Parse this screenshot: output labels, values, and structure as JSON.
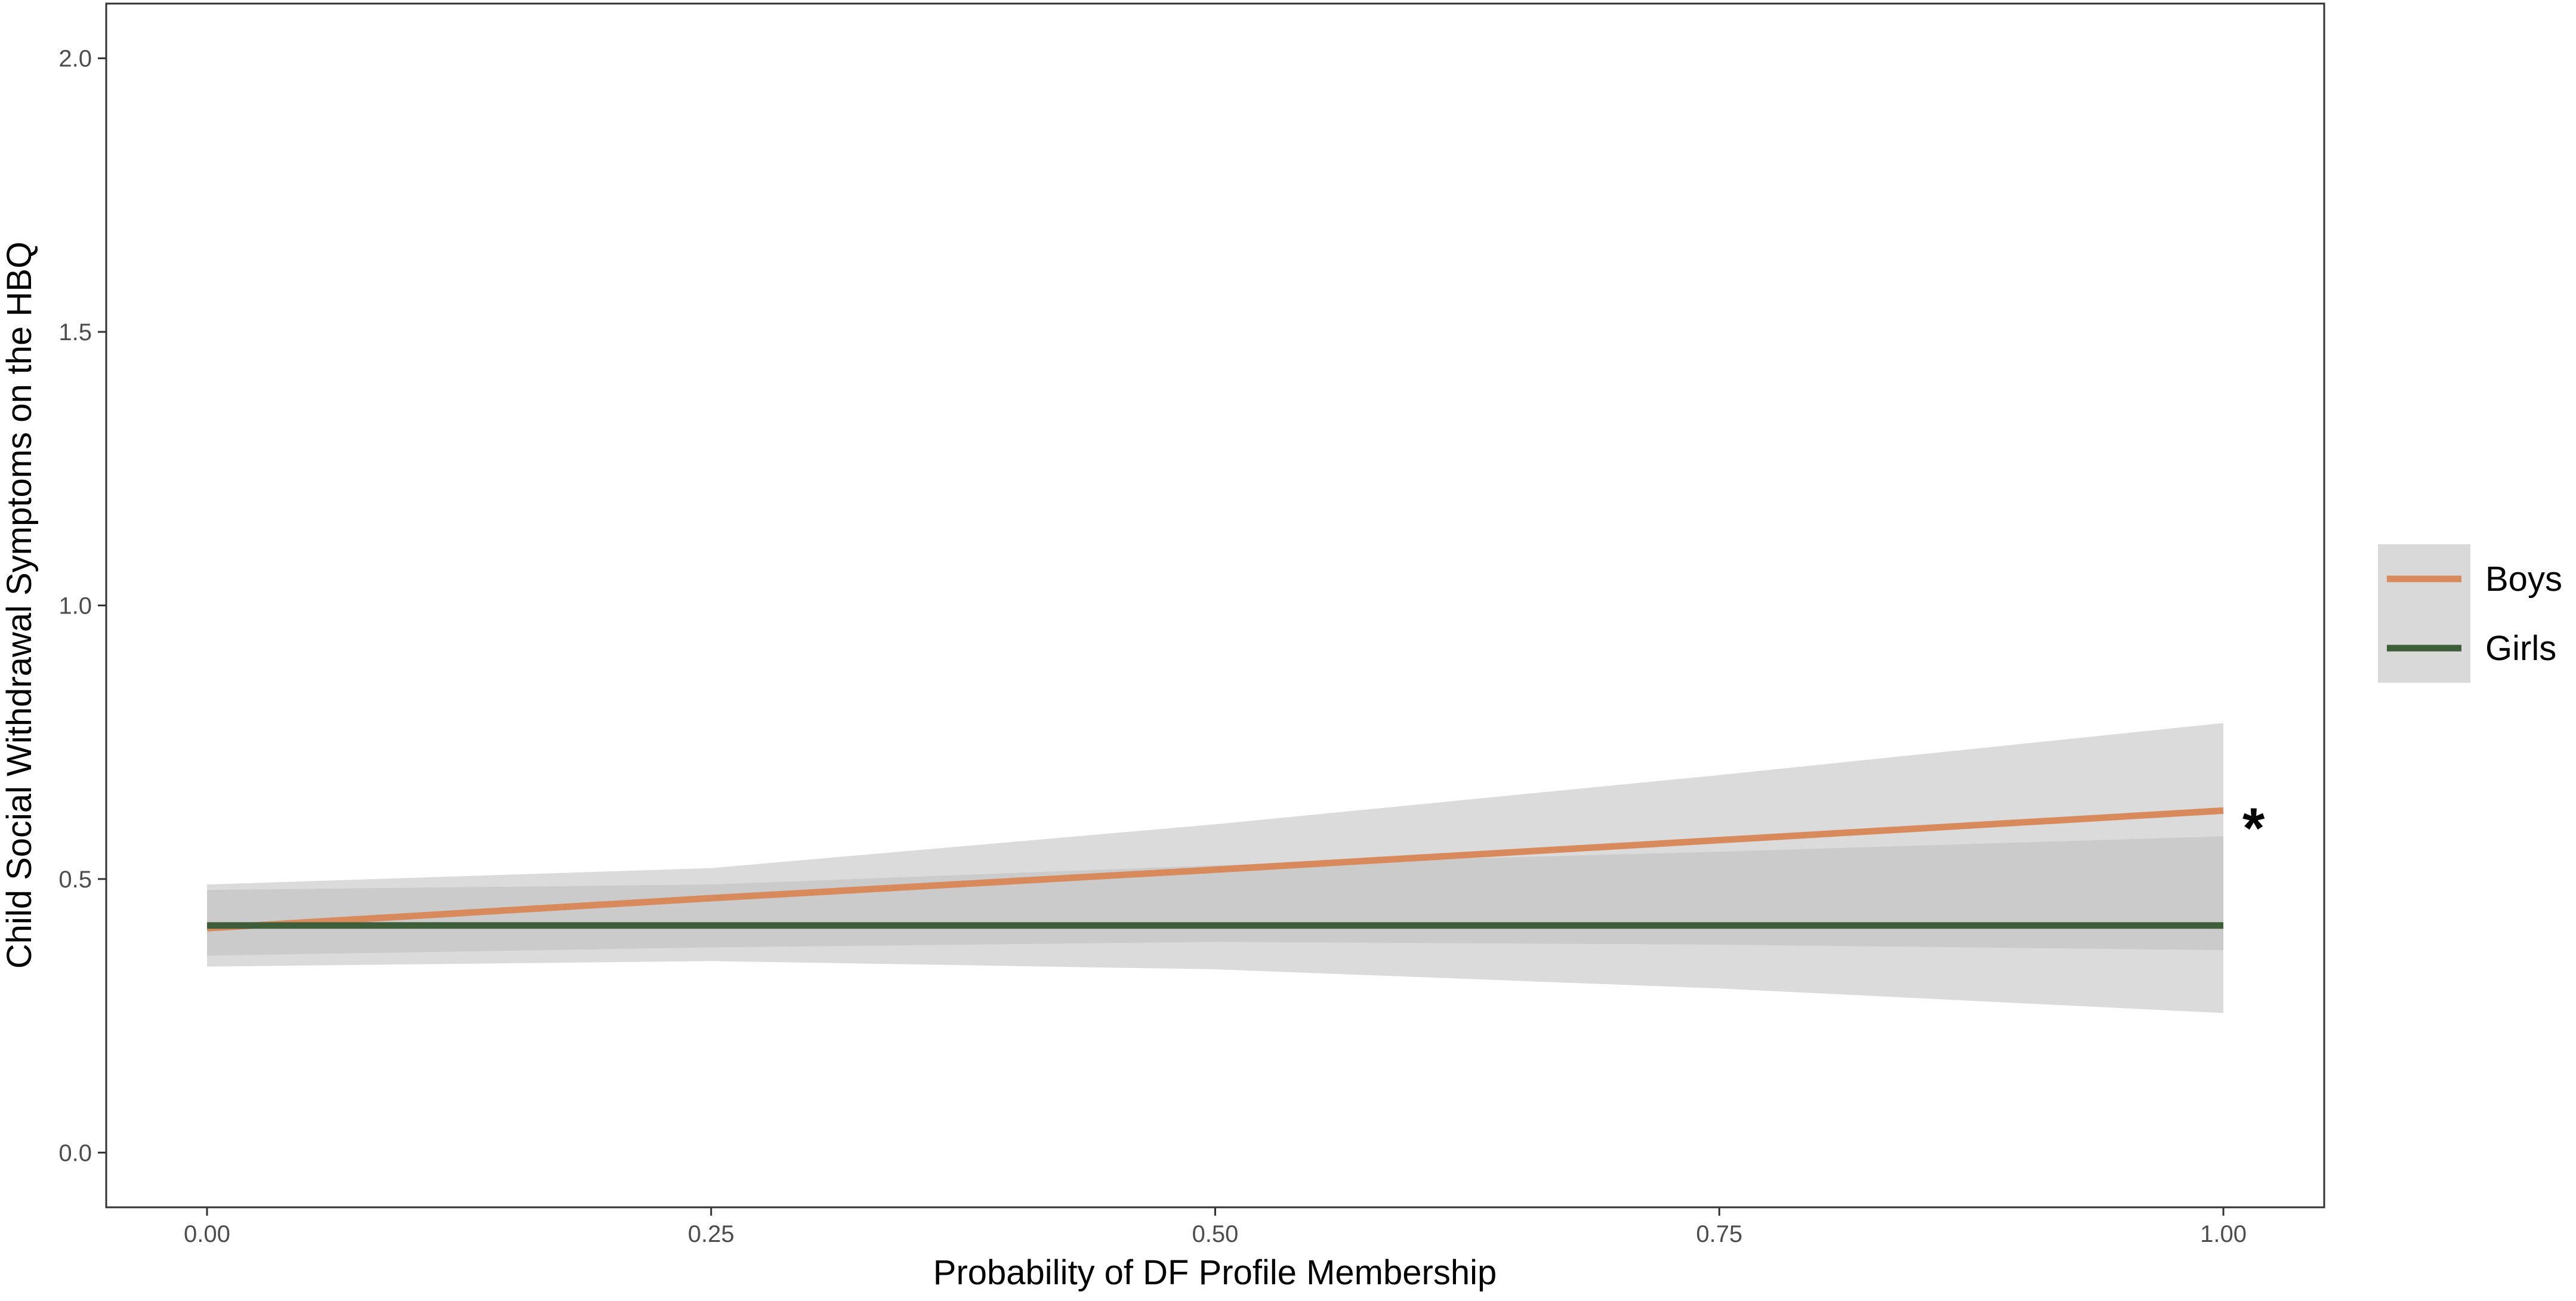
{
  "chart_data": {
    "type": "line",
    "title": "",
    "xlabel": "Probability of DF Profile Membership",
    "ylabel": "Child Social Withdrawal Symptoms on the HBQ",
    "xlim": [
      -0.05,
      1.05
    ],
    "ylim": [
      -0.1,
      2.1
    ],
    "x_ticks": [
      0.0,
      0.25,
      0.5,
      0.75,
      1.0
    ],
    "x_tick_labels": [
      "0.00",
      "0.25",
      "0.50",
      "0.75",
      "1.00"
    ],
    "y_ticks": [
      0.0,
      0.5,
      1.0,
      1.5,
      2.0
    ],
    "y_tick_labels": [
      "0.0",
      "0.5",
      "1.0",
      "1.5",
      "2.0"
    ],
    "grid": false,
    "legend_position": "right",
    "series": [
      {
        "name": "Boys",
        "color": "#D98A5C",
        "x": [
          0.0,
          0.25,
          0.5,
          0.75,
          1.0
        ],
        "y": [
          0.41,
          0.465,
          0.517,
          0.571,
          0.625
        ],
        "ci_lower": [
          0.34,
          0.35,
          0.335,
          0.3,
          0.255
        ],
        "ci_upper": [
          0.49,
          0.52,
          0.6,
          0.69,
          0.785
        ]
      },
      {
        "name": "Girls",
        "color": "#3E5E3A",
        "x": [
          0.0,
          0.25,
          0.5,
          0.75,
          1.0
        ],
        "y": [
          0.415,
          0.415,
          0.415,
          0.415,
          0.415
        ],
        "ci_lower": [
          0.36,
          0.375,
          0.385,
          0.38,
          0.37
        ],
        "ci_upper": [
          0.48,
          0.49,
          0.525,
          0.55,
          0.578
        ]
      }
    ],
    "ribbon_color": "#BDBDBD",
    "annotations": [
      {
        "text": "*",
        "series": "Boys",
        "x": 1.0
      }
    ]
  }
}
